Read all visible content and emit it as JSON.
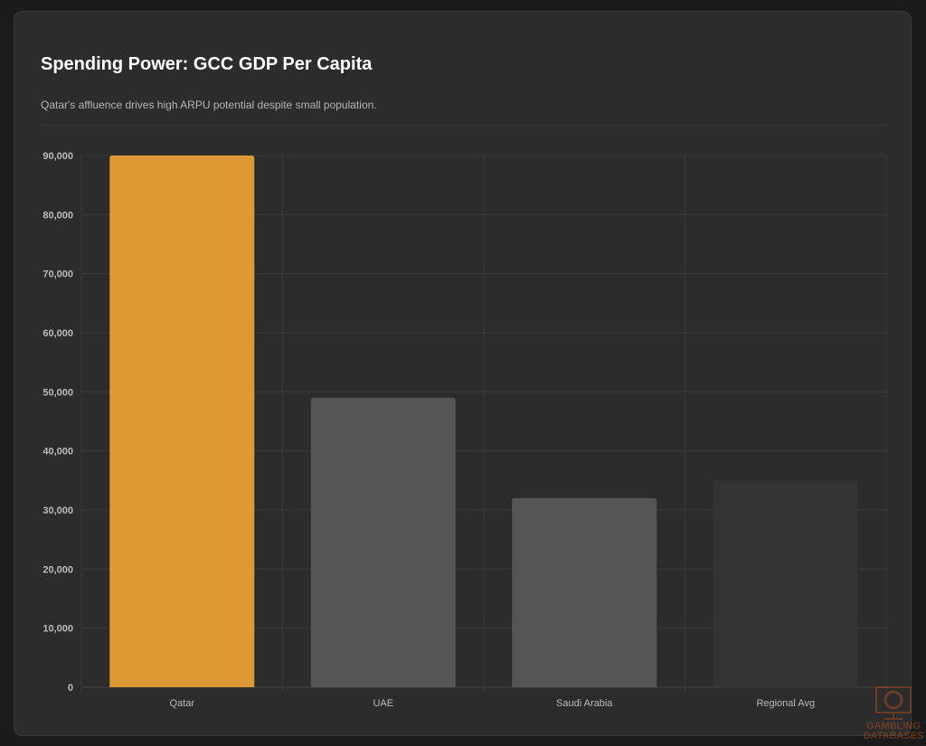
{
  "chart_data": {
    "type": "bar",
    "title": "Spending Power: GCC GDP Per Capita",
    "subtitle": "Qatar's affluence drives high ARPU potential despite small population.",
    "categories": [
      "Qatar",
      "UAE",
      "Saudi Arabia",
      "Regional Avg"
    ],
    "values": [
      90000,
      49000,
      32000,
      35000
    ],
    "colors": [
      "#dd9933",
      "#555555",
      "#555555",
      "#333333"
    ],
    "ylim": [
      0,
      90000
    ],
    "yticks": [
      "0",
      "10,000",
      "20,000",
      "30,000",
      "40,000",
      "50,000",
      "60,000",
      "70,000",
      "80,000",
      "90,000"
    ],
    "grid": true,
    "legend": "none"
  },
  "watermark": {
    "text": "GAMBLING DATABASES",
    "icon": "casino-chip-monitor-icon",
    "color": "#b4531f"
  }
}
